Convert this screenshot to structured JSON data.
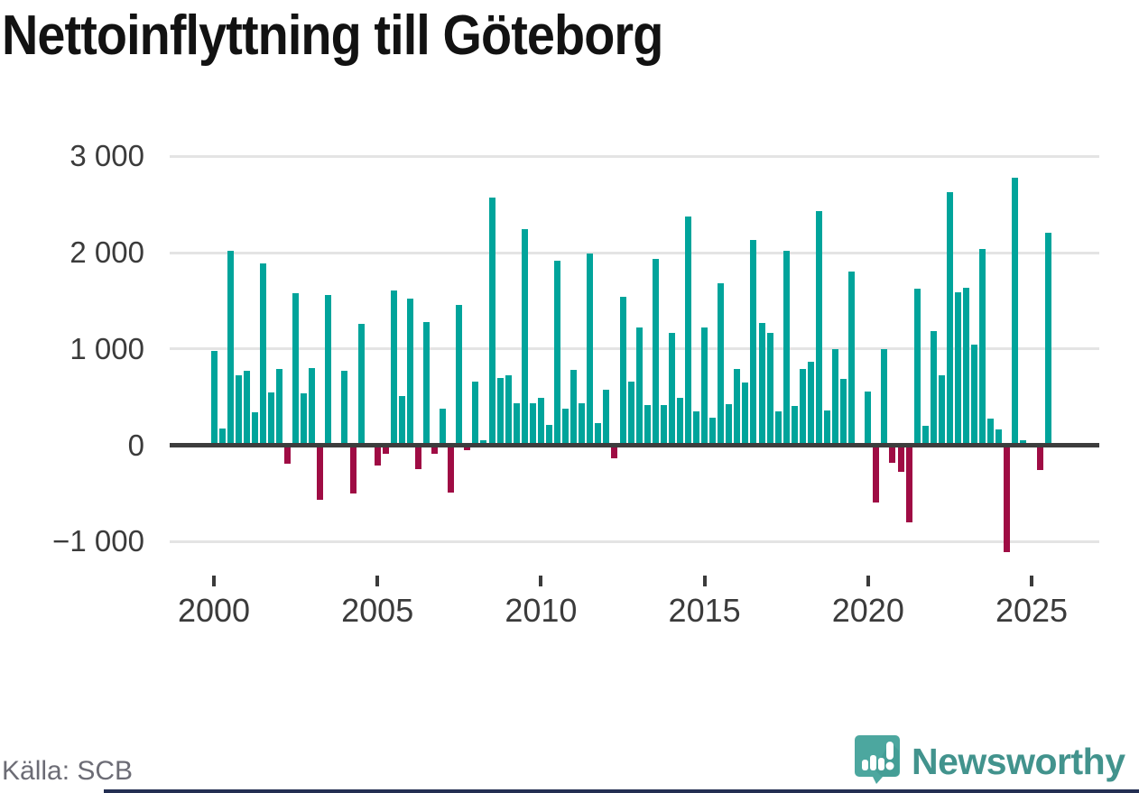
{
  "title": "Nettoinflyttning till Göteborg",
  "source": "Källa: SCB",
  "branding": {
    "name": "Newsworthy"
  },
  "colors": {
    "positive": "#00a49b",
    "negative": "#9f0c44",
    "axis": "#3d3d3d",
    "grid": "#e4e4e4",
    "text": "#3b3b3b",
    "title": "#121212",
    "source_text": "#6c6c75",
    "brand_teal": "#42938d",
    "brand_icon": "#4ca79f",
    "brand_navy": "#232e52"
  },
  "chart_data": {
    "type": "bar",
    "title": "Nettoinflyttning till Göteborg",
    "xlabel": "",
    "ylabel": "",
    "ylim": [
      -1250,
      3100
    ],
    "grid": true,
    "legend": false,
    "y_gridlines": [
      {
        "v": 3000,
        "label": "3 000"
      },
      {
        "v": 2000,
        "label": "2 000"
      },
      {
        "v": 1000,
        "label": "1 000"
      },
      {
        "v": 0,
        "label": "0"
      },
      {
        "v": -1000,
        "label": "−1 000"
      }
    ],
    "x_ticks": [
      {
        "year": 2000,
        "label": "2000"
      },
      {
        "year": 2005,
        "label": "2005"
      },
      {
        "year": 2010,
        "label": "2010"
      },
      {
        "year": 2015,
        "label": "2015"
      },
      {
        "year": 2020,
        "label": "2020"
      },
      {
        "year": 2025,
        "label": "2025"
      }
    ],
    "frequency": "quarterly",
    "years": [
      {
        "year": 2000,
        "values": [
          975,
          170,
          2020,
          730
        ]
      },
      {
        "year": 2001,
        "values": [
          770,
          340,
          1890,
          545
        ]
      },
      {
        "year": 2002,
        "values": [
          790,
          -190,
          1580,
          535
        ]
      },
      {
        "year": 2003,
        "values": [
          805,
          -570,
          1560,
          20
        ]
      },
      {
        "year": 2004,
        "values": [
          775,
          -505,
          1265,
          10
        ]
      },
      {
        "year": 2005,
        "values": [
          -215,
          -85,
          1610,
          515
        ]
      },
      {
        "year": 2006,
        "values": [
          1520,
          -250,
          1280,
          -85
        ]
      },
      {
        "year": 2007,
        "values": [
          375,
          -495,
          1455,
          -55
        ]
      },
      {
        "year": 2008,
        "values": [
          665,
          55,
          2575,
          700
        ]
      },
      {
        "year": 2009,
        "values": [
          730,
          440,
          2240,
          440
        ]
      },
      {
        "year": 2010,
        "values": [
          495,
          215,
          1920,
          375
        ]
      },
      {
        "year": 2011,
        "values": [
          785,
          440,
          1990,
          225
        ]
      },
      {
        "year": 2012,
        "values": [
          580,
          -135,
          1540,
          660
        ]
      },
      {
        "year": 2013,
        "values": [
          1225,
          415,
          1940,
          415
        ]
      },
      {
        "year": 2014,
        "values": [
          1170,
          490,
          2380,
          350
        ]
      },
      {
        "year": 2015,
        "values": [
          1220,
          285,
          1680,
          425
        ]
      },
      {
        "year": 2016,
        "values": [
          790,
          655,
          2130,
          1270
        ]
      },
      {
        "year": 2017,
        "values": [
          1165,
          350,
          2015,
          405
        ]
      },
      {
        "year": 2018,
        "values": [
          790,
          865,
          2430,
          360
        ]
      },
      {
        "year": 2019,
        "values": [
          1000,
          690,
          1805,
          10
        ]
      },
      {
        "year": 2020,
        "values": [
          555,
          -595,
          1000,
          -185
        ]
      },
      {
        "year": 2021,
        "values": [
          -275,
          -800,
          1625,
          205
        ]
      },
      {
        "year": 2022,
        "values": [
          1185,
          725,
          2625,
          1585
        ]
      },
      {
        "year": 2023,
        "values": [
          1640,
          1045,
          2035,
          275
        ]
      },
      {
        "year": 2024,
        "values": [
          160,
          -1110,
          2780,
          50
        ]
      },
      {
        "year": 2025,
        "values": [
          0,
          -260,
          2210
        ]
      }
    ]
  }
}
